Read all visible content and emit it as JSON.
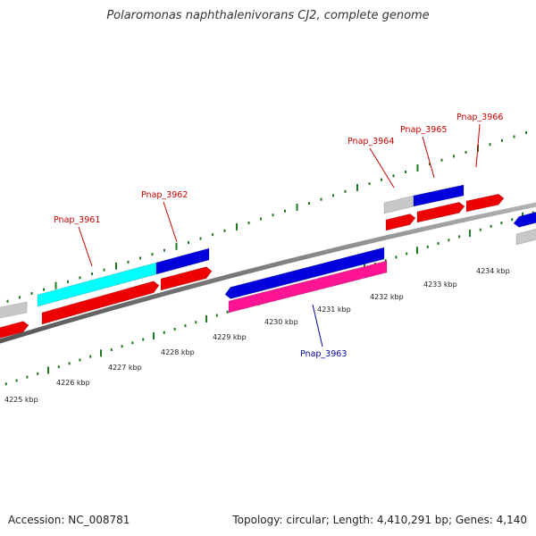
{
  "header": {
    "title": "Polaromonas naphthalenivorans CJ2, complete genome"
  },
  "footer": {
    "accession": "Accession: NC_008781",
    "summary": "Topology: circular; Length: 4,410,291 bp; Genes: 4,140"
  },
  "scale": {
    "labels": [
      "4225 kbp",
      "4226 kbp",
      "4227 kbp",
      "4228 kbp",
      "4229 kbp",
      "4230 kbp",
      "4231 kbp",
      "4232 kbp",
      "4233 kbp",
      "4234 kbp"
    ]
  },
  "genes": [
    {
      "name": "Pnap_3961",
      "color": "#cc0000"
    },
    {
      "name": "Pnap_3962",
      "color": "#cc0000"
    },
    {
      "name": "Pnap_3963",
      "color": "#0000aa"
    },
    {
      "name": "Pnap_3964",
      "color": "#cc0000"
    },
    {
      "name": "Pnap_3965",
      "color": "#cc0000"
    },
    {
      "name": "Pnap_3966",
      "color": "#cc0000"
    }
  ],
  "colors": {
    "backbone": "#8a8a8a",
    "tick": "#1e7a1e",
    "forward_gene": "#0000dd",
    "reverse_gene": "#ee0000",
    "highlight_cyan": "#00ffff",
    "highlight_magenta": "#ff1493",
    "other_gene": "#c8c8c8"
  }
}
